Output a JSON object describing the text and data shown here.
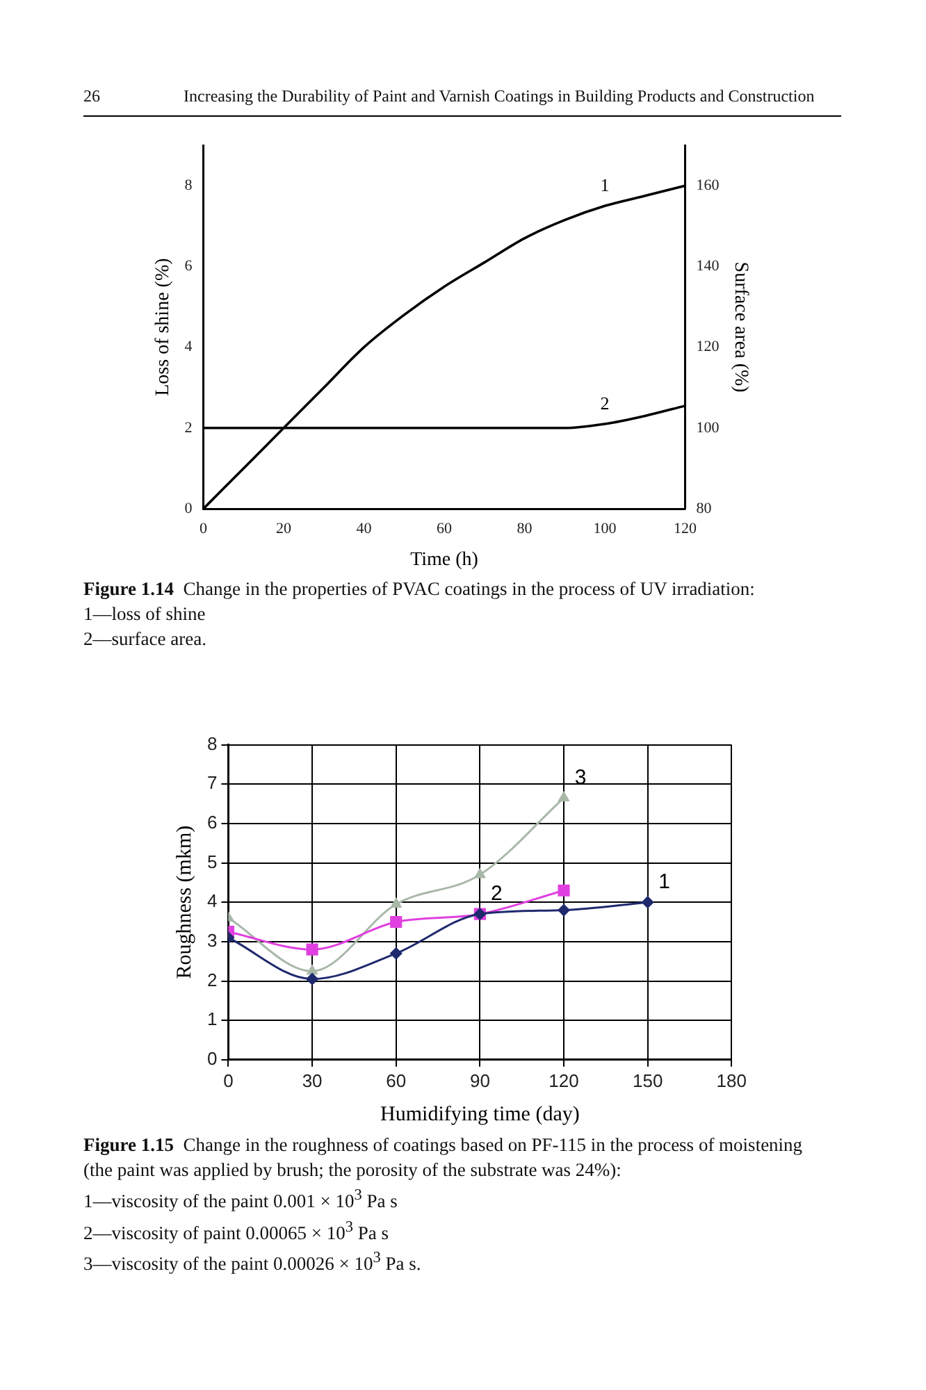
{
  "chart_data": [
    {
      "type": "line",
      "title": "Figure 1.14",
      "xlabel": "Time (h)",
      "ylabel": "Loss of shine (%)",
      "y2label": "Surface area (%)",
      "annotations": [
        "26",
        "Increasing the Durability of Paint and Varnish Coatings in Building Products and Construction",
        "Change in the properties of PVAC coatings in the process of UV irradiation:",
        "1—loss of shine",
        "2—surface area.",
        {
          "text": "1",
          "x": 100,
          "y": 7.5
        },
        {
          "text": "2",
          "x": 100,
          "y": 2.1
        }
      ],
      "x": [
        0,
        10,
        20,
        30,
        40,
        50,
        60,
        70,
        80,
        90,
        100,
        110,
        120
      ],
      "series": [
        {
          "color": "#000000",
          "values": [
            0,
            1,
            2,
            3,
            4,
            4.8,
            5.5,
            6.1,
            6.7,
            7.15,
            7.5,
            7.75,
            8.0
          ]
        },
        {
          "color": "#000000",
          "axis": "y2",
          "values": [
            100,
            100,
            100,
            100,
            100,
            100,
            100,
            100,
            100,
            100,
            101,
            103,
            105.5
          ]
        }
      ],
      "xlim": [
        0,
        120
      ],
      "xticks": [
        0,
        20,
        40,
        60,
        80,
        100,
        120
      ],
      "ylim": [
        0,
        9
      ],
      "yticks": [
        0,
        2,
        4,
        6,
        8
      ],
      "y2lim": [
        80,
        170
      ],
      "y2ticks": [
        80,
        100,
        120,
        140,
        160
      ],
      "grid": false,
      "legend": false,
      "marker": "none",
      "line_style": "solid"
    },
    {
      "type": "line",
      "title": "Figure 1.15",
      "xlabel": "Humidifying time (day)",
      "ylabel": "Roughness (mkm)",
      "annotations": [
        "Change in the roughness of coatings based on PF-115 in the process of moistening (the paint was applied by brush; the porosity of the substrate was 24%):",
        "1—viscosity of the paint 0.001 × 10$^{3}$ Pa s",
        "2—viscosity of paint 0.00065 × 10$^{3}$ Pa s",
        "3—viscosity of the paint 0.00026 × 10$^{3}$ Pa s.",
        {
          "text": "1",
          "x": 150,
          "y": 4.0
        },
        {
          "text": "2",
          "x": 90,
          "y": 3.7
        },
        {
          "text": "3",
          "x": 120,
          "y": 6.65
        }
      ],
      "series": [
        {
          "color": "#1f2a6e",
          "marker": "diamond",
          "x": [
            0,
            30,
            60,
            90,
            120,
            150
          ],
          "values": [
            3.1,
            2.05,
            2.7,
            3.7,
            3.8,
            4.0
          ]
        },
        {
          "color": "#e040e0",
          "marker": "square",
          "x": [
            0,
            30,
            60,
            90,
            120
          ],
          "values": [
            3.25,
            2.8,
            3.5,
            3.7,
            4.3
          ]
        },
        {
          "color": "#a8b8a8",
          "marker": "triangle",
          "x": [
            0,
            30,
            60,
            90,
            120
          ],
          "values": [
            3.6,
            2.25,
            3.95,
            4.7,
            6.65
          ]
        }
      ],
      "xlim": [
        0,
        180
      ],
      "xticks": [
        0,
        30,
        60,
        90,
        120,
        150,
        180
      ],
      "ylim": [
        0,
        8
      ],
      "yticks": [
        0,
        1,
        2,
        3,
        4,
        5,
        6,
        7,
        8
      ],
      "grid": true,
      "legend": false,
      "line_style": "solid"
    }
  ]
}
